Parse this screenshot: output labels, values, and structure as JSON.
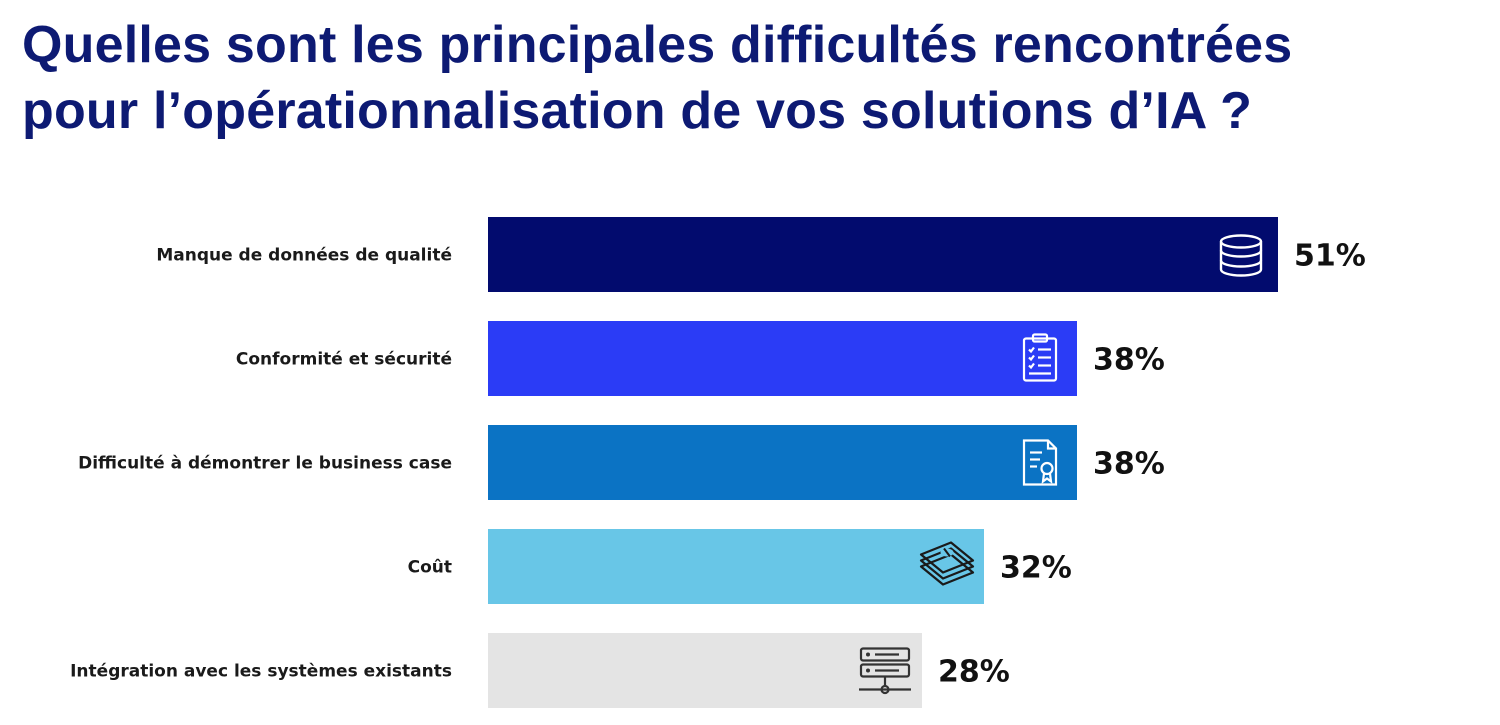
{
  "chart_data": {
    "type": "bar",
    "orientation": "horizontal",
    "title_lines": [
      "Quelles sont les principales difficultés rencontrées",
      "pour l’opérationnalisation de vos solutions d’IA ?"
    ],
    "categories": [
      "Manque de données de qualité",
      "Conformité et sécurité",
      "Difficulté à démontrer le business case",
      "Coût",
      "Intégration avec les systèmes existants"
    ],
    "values": [
      51,
      38,
      38,
      32,
      28
    ],
    "value_labels": [
      "51%",
      "38%",
      "38%",
      "32%",
      "28%"
    ],
    "unit": "%",
    "icons": [
      "database-icon",
      "clipboard-checklist-icon",
      "certificate-document-icon",
      "money-stack-icon",
      "server-icon"
    ],
    "bar_colors": [
      "#020b6e",
      "#2b3cf6",
      "#0b73c4",
      "#68c6e7",
      "#e4e4e4"
    ],
    "icon_colors": [
      "#ffffff",
      "#ffffff",
      "#ffffff",
      "#1a1a1a",
      "#333333"
    ],
    "xlim": [
      0,
      51
    ],
    "grid": false,
    "legend": "none"
  }
}
